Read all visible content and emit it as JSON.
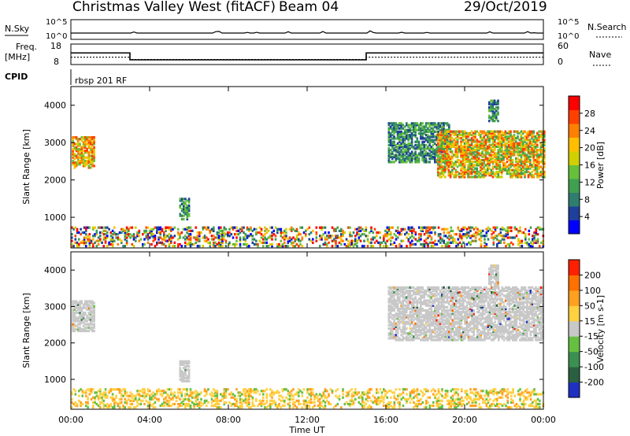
{
  "header": {
    "station": "Christmas Valley West (fitACF)",
    "beam": "Beam 04",
    "date": "29/Oct/2019"
  },
  "summary_panels": {
    "nsky_label": "N.Sky",
    "nsky_ticks": [
      "10^5",
      "10^0"
    ],
    "nsearch_label": "N.Search",
    "nsearch_ticks": [
      "10^5",
      "10^0"
    ],
    "freq_label": "Freq.",
    "freq_unit": "[MHz]",
    "freq_ticks": [
      "18",
      "8"
    ],
    "nave_label": "Nave",
    "nave_ticks": [
      "60",
      "0"
    ],
    "cpid_label": "CPID",
    "cpid_value": "rbsp 201 RF"
  },
  "chart_data": [
    {
      "type": "line",
      "name": "freq-nave",
      "x_unit_hours": [
        0,
        24
      ],
      "freq_segments": [
        {
          "x": [
            0,
            3
          ],
          "freq": 13.5
        },
        {
          "x": [
            3,
            15
          ],
          "freq": 10.0
        },
        {
          "x": [
            15,
            24
          ],
          "freq": 13.5
        }
      ],
      "nave_segments": [
        {
          "x": [
            0,
            3
          ],
          "nave": 20
        },
        {
          "x": [
            3,
            15
          ],
          "nave": 13
        },
        {
          "x": [
            15,
            24
          ],
          "nave": 20
        }
      ],
      "freq_range": [
        8,
        18
      ],
      "nave_range": [
        0,
        60
      ]
    },
    {
      "type": "heatmap",
      "name": "power",
      "xlabel": "Time UT",
      "ylabel": "Slant Range [km]",
      "xlim": [
        0,
        24
      ],
      "ylim": [
        180,
        4500
      ],
      "x_ticks": [
        "00:00",
        "04:00",
        "08:00",
        "12:00",
        "16:00",
        "20:00",
        "00:00"
      ],
      "y_ticks": [
        1000,
        2000,
        3000,
        4000
      ],
      "colorbar": {
        "label": "Power [dB]",
        "ticks": [
          "28",
          "24",
          "20",
          "16",
          "12",
          "8",
          "4"
        ],
        "range": [
          0,
          30
        ],
        "colors": [
          "#0000ff",
          "#1e3f9a",
          "#2e7d6e",
          "#3fa050",
          "#66c03a",
          "#d0d000",
          "#ffbf00",
          "#ff8000",
          "#ff4000",
          "#ff0000"
        ]
      },
      "regions": [
        {
          "t": [
            0.05,
            1.2
          ],
          "r": [
            2300,
            3150
          ],
          "level": 2
        },
        {
          "t": [
            5.5,
            6.0
          ],
          "r": [
            920,
            1500
          ],
          "level": 1
        },
        {
          "t": [
            16.1,
            19.2
          ],
          "r": [
            2450,
            3500
          ],
          "level": 1
        },
        {
          "t": [
            18.6,
            24.0
          ],
          "r": [
            2050,
            3300
          ],
          "level": 3
        },
        {
          "t": [
            21.2,
            21.7
          ],
          "r": [
            3550,
            4100
          ],
          "level": 1
        },
        {
          "t": [
            0.0,
            24.0
          ],
          "r": [
            200,
            700
          ],
          "level": 0
        }
      ]
    },
    {
      "type": "heatmap",
      "name": "velocity",
      "xlabel": "Time UT",
      "ylabel": "Slant Range [km]",
      "xlim": [
        0,
        24
      ],
      "ylim": [
        180,
        4500
      ],
      "x_ticks": [
        "00:00",
        "04:00",
        "08:00",
        "12:00",
        "16:00",
        "20:00",
        "00:00"
      ],
      "y_ticks": [
        1000,
        2000,
        3000,
        4000
      ],
      "colorbar": {
        "label": "Velocity [m s-1]",
        "ticks": [
          "200",
          "100",
          "50",
          "15",
          "-15",
          "-50",
          "-100",
          "-200"
        ],
        "range": [
          -250,
          250
        ],
        "colors": [
          "#2030c0",
          "#2a6040",
          "#3a9050",
          "#66c040",
          "#c8c8c8",
          "#ffd040",
          "#ffa020",
          "#ff7000",
          "#ff2000"
        ]
      },
      "regions": [
        {
          "t": [
            0.05,
            1.2
          ],
          "r": [
            2300,
            3150
          ],
          "level": 0
        },
        {
          "t": [
            5.5,
            6.0
          ],
          "r": [
            920,
            1500
          ],
          "level": 0
        },
        {
          "t": [
            16.1,
            24.0
          ],
          "r": [
            2050,
            3500
          ],
          "level": 0
        },
        {
          "t": [
            21.2,
            21.7
          ],
          "r": [
            3550,
            4100
          ],
          "level": 0
        },
        {
          "t": [
            0.0,
            24.0
          ],
          "r": [
            200,
            700
          ],
          "level": 1
        }
      ]
    }
  ]
}
